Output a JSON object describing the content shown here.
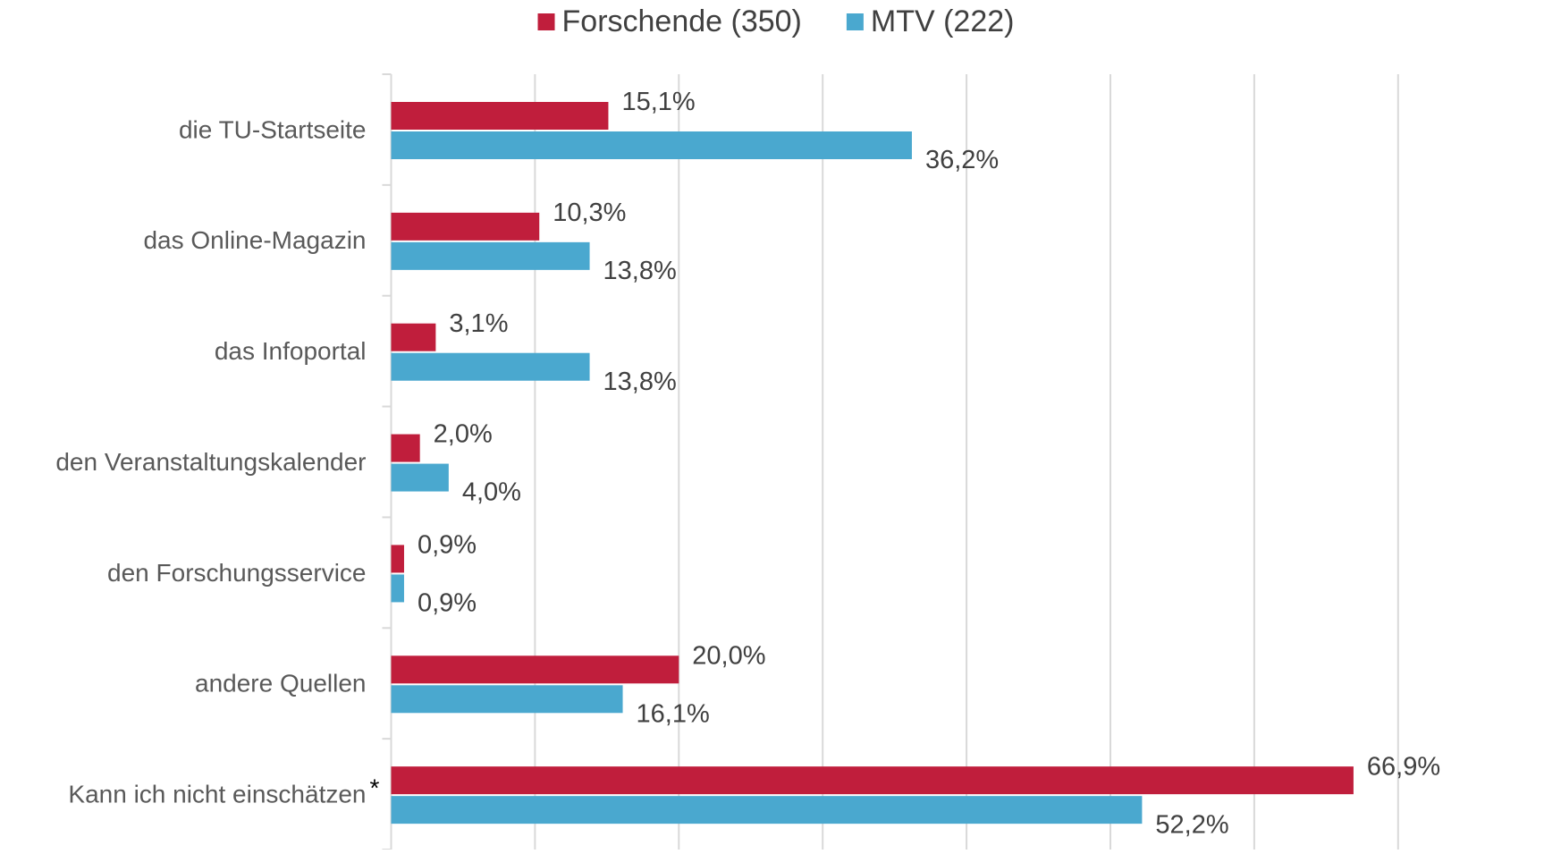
{
  "chart_data": {
    "type": "bar",
    "orientation": "horizontal",
    "categories": [
      "die TU-Startseite",
      "das Online-Magazin",
      "das Infoportal",
      "den Veranstaltungskalender",
      "den Forschungsservice",
      "andere Quellen",
      "Kann ich nicht einschätzen"
    ],
    "footnote_marker": "*",
    "series": [
      {
        "name": "Forschende (350)",
        "color": "#c01e3c",
        "values": [
          15.1,
          10.3,
          3.1,
          2.0,
          0.9,
          20.0,
          66.9
        ],
        "value_labels": [
          "15,1%",
          "10,3%",
          "3,1%",
          "2,0%",
          "0,9%",
          "20,0%",
          "66,9%"
        ]
      },
      {
        "name": "MTV (222)",
        "color": "#4aa8cf",
        "values": [
          36.2,
          13.8,
          13.8,
          4.0,
          0.9,
          16.1,
          52.2
        ],
        "value_labels": [
          "36,2%",
          "13,8%",
          "13,8%",
          "4,0%",
          "0,9%",
          "16,1%",
          "52,2%"
        ]
      }
    ],
    "xlim": [
      0,
      80
    ],
    "xticks": [
      0,
      10,
      20,
      30,
      40,
      50,
      60,
      70
    ],
    "grid": true,
    "legend": "top"
  }
}
